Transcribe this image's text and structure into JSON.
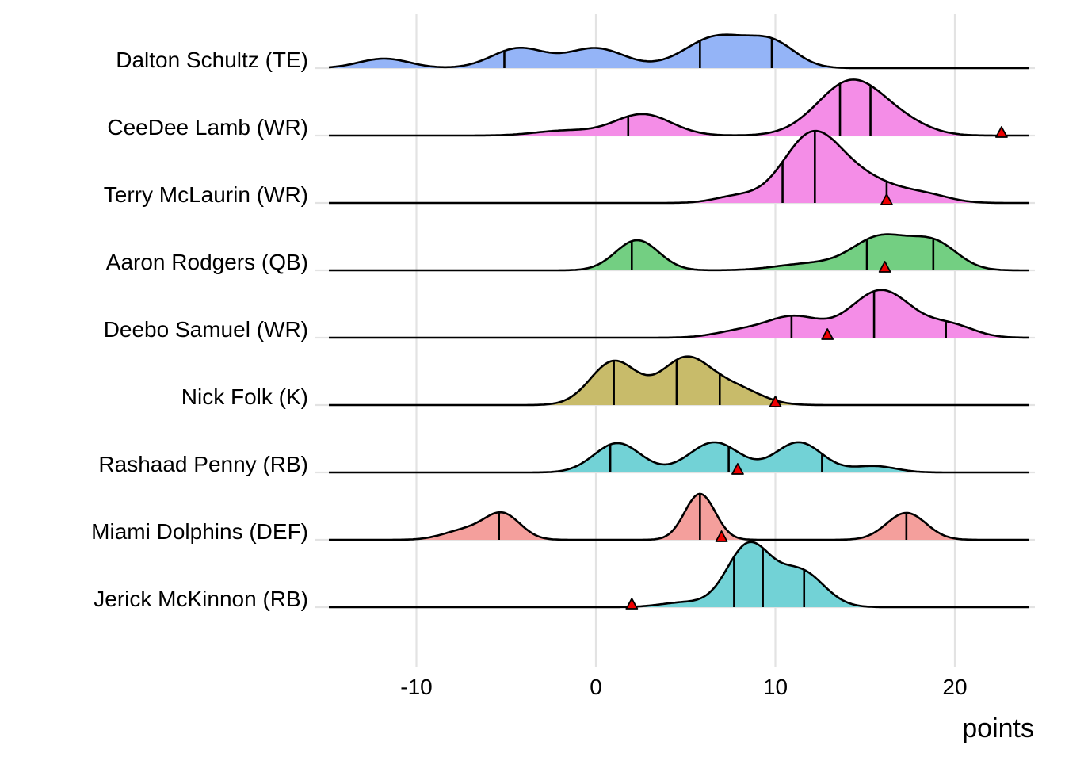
{
  "chart_data": {
    "type": "ridgeline-density",
    "title": "",
    "xlabel": "points",
    "ylabel": "",
    "xlim": [
      -15,
      24
    ],
    "x_ticks": [
      -10,
      0,
      10,
      20
    ],
    "x_tick_labels": [
      "-10",
      "0",
      "10",
      "20"
    ],
    "grid": true,
    "legend": "none",
    "quantile_lines": "quartiles (25%, 50%, 75%)",
    "marker": {
      "shape": "triangle",
      "color": "#e00000",
      "meaning": "actual points scored"
    },
    "series": [
      {
        "name": "Dalton Schultz (TE)",
        "position": "TE",
        "color": "#94b4f7",
        "quantiles": [
          -5.1,
          5.8,
          9.8
        ],
        "actual": null,
        "modes": [
          [
            -11.8,
            0.12,
            1.4
          ],
          [
            -4.3,
            0.25,
            1.5
          ],
          [
            0.0,
            0.25,
            1.6
          ],
          [
            6.8,
            0.4,
            1.8
          ],
          [
            9.9,
            0.28,
            1.3
          ]
        ]
      },
      {
        "name": "CeeDee Lamb (WR)",
        "position": "WR",
        "color": "#f48de7",
        "quantiles": [
          1.8,
          13.6,
          15.3
        ],
        "actual": 22.6,
        "modes": [
          [
            -1.8,
            0.06,
            1.6
          ],
          [
            2.6,
            0.27,
            1.6
          ],
          [
            14.3,
            0.7,
            1.9
          ],
          [
            17.5,
            0.08,
            1.4
          ]
        ]
      },
      {
        "name": "Terry McLaurin (WR)",
        "position": "WR",
        "color": "#f48de7",
        "quantiles": [
          10.4,
          12.2,
          16.2
        ],
        "actual": 16.2,
        "modes": [
          [
            7.8,
            0.08,
            1.2
          ],
          [
            12.0,
            0.82,
            1.6
          ],
          [
            15.0,
            0.28,
            1.9
          ],
          [
            18.5,
            0.08,
            1.3
          ]
        ]
      },
      {
        "name": "Aaron Rodgers (QB)",
        "position": "QB",
        "color": "#73cf82",
        "quantiles": [
          2.0,
          15.1,
          18.8
        ],
        "actual": 16.1,
        "modes": [
          [
            2.3,
            0.38,
            1.2
          ],
          [
            11.8,
            0.08,
            1.8
          ],
          [
            15.9,
            0.42,
            1.6
          ],
          [
            18.9,
            0.32,
            1.3
          ]
        ]
      },
      {
        "name": "Deebo Samuel (WR)",
        "position": "WR",
        "color": "#f48de7",
        "quantiles": [
          10.9,
          15.5,
          19.5
        ],
        "actual": 12.9,
        "modes": [
          [
            8.0,
            0.08,
            1.4
          ],
          [
            11.0,
            0.26,
            1.5
          ],
          [
            15.9,
            0.6,
            1.7
          ],
          [
            19.8,
            0.15,
            1.3
          ]
        ]
      },
      {
        "name": "Nick Folk (K)",
        "position": "K",
        "color": "#c8bb6a",
        "quantiles": [
          1.0,
          4.5,
          6.9
        ],
        "actual": 10.0,
        "modes": [
          [
            1.0,
            0.55,
            1.3
          ],
          [
            5.0,
            0.58,
            1.4
          ],
          [
            7.8,
            0.2,
            1.4
          ]
        ]
      },
      {
        "name": "Rashaad Penny (RB)",
        "position": "RB",
        "color": "#72d2d6",
        "quantiles": [
          0.8,
          7.4,
          12.6
        ],
        "actual": 7.9,
        "modes": [
          [
            1.2,
            0.37,
            1.3
          ],
          [
            6.6,
            0.38,
            1.4
          ],
          [
            11.3,
            0.38,
            1.3
          ],
          [
            15.5,
            0.08,
            1.2
          ]
        ]
      },
      {
        "name": "Miami Dolphins (DEF)",
        "position": "DEF",
        "color": "#f49f9c",
        "quantiles": [
          -5.4,
          5.8,
          17.3
        ],
        "actual": 7.0,
        "modes": [
          [
            -7.3,
            0.12,
            1.2
          ],
          [
            -5.2,
            0.32,
            1.0
          ],
          [
            5.8,
            0.58,
            0.85
          ],
          [
            17.3,
            0.34,
            1.1
          ]
        ]
      },
      {
        "name": "Jerick McKinnon (RB)",
        "position": "RB",
        "color": "#72d2d6",
        "quantiles": [
          7.7,
          9.3,
          11.6
        ],
        "actual": 2.0,
        "modes": [
          [
            4.9,
            0.06,
            1.3
          ],
          [
            8.5,
            0.78,
            1.2
          ],
          [
            11.4,
            0.45,
            1.3
          ]
        ]
      }
    ]
  }
}
